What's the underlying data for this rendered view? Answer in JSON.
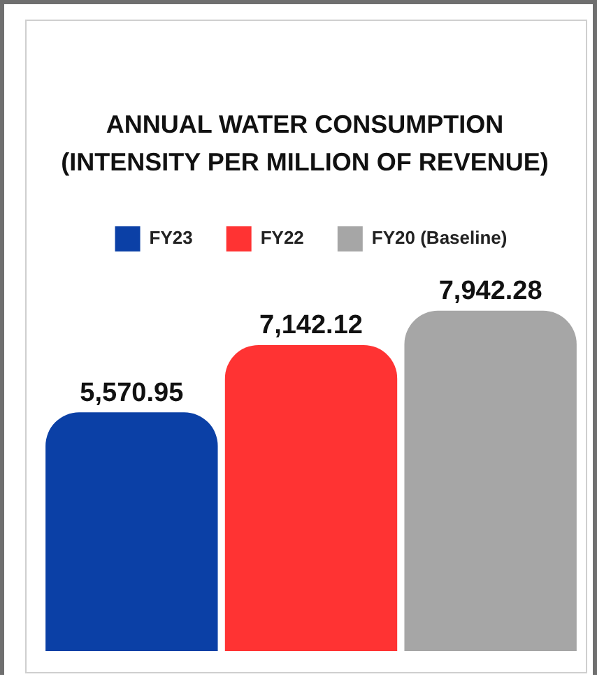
{
  "chart_data": {
    "type": "bar",
    "title": "ANNUAL WATER CONSUMPTION (INTENSITY PER MILLION OF REVENUE)",
    "categories": [
      null
    ],
    "series": [
      {
        "name": "FY23",
        "color": "#0b40a6",
        "values": [
          5570.95
        ],
        "value_labels": [
          "5,570.95"
        ]
      },
      {
        "name": "FY22",
        "color": "#ff3333",
        "values": [
          7142.12
        ],
        "value_labels": [
          "7,142.12"
        ]
      },
      {
        "name": "FY20 (Baseline)",
        "color": "#a6a6a6",
        "values": [
          7942.28
        ],
        "value_labels": [
          "7,942.28"
        ]
      }
    ],
    "legend": "top"
  }
}
